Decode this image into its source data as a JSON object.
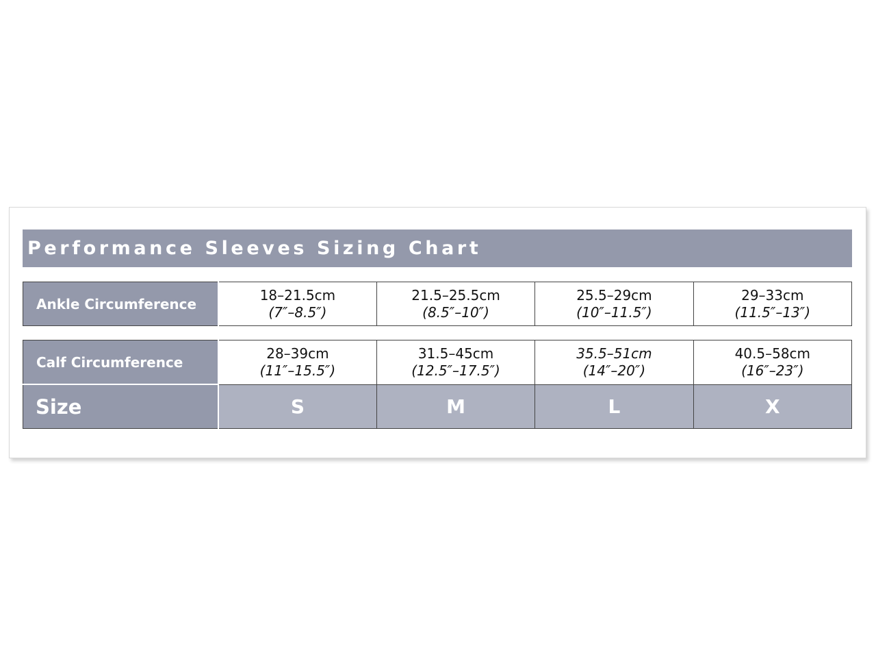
{
  "title": "Performance Sleeves Sizing Chart",
  "colors": {
    "header": "#9499ab",
    "size_row": "#aeb2c1"
  },
  "ankle": {
    "label": "Ankle Circumference",
    "cells": [
      {
        "cm": "18–21.5cm",
        "in": "(7″–8.5″)"
      },
      {
        "cm": "21.5–25.5cm",
        "in": "(8.5″–10″)"
      },
      {
        "cm": "25.5–29cm",
        "in": "(10″–11.5″)"
      },
      {
        "cm": "29–33cm",
        "in": "(11.5″–13″)"
      }
    ]
  },
  "calf": {
    "label": "Calf Circumference",
    "cells": [
      {
        "cm": "28–39cm",
        "in": "(11″–15.5″)"
      },
      {
        "cm": "31.5–45cm",
        "in": "(12.5″–17.5″)"
      },
      {
        "cm": "35.5–51cm",
        "in": "(14″–20″)"
      },
      {
        "cm": "40.5–58cm",
        "in": "(16″–23″)"
      }
    ]
  },
  "size": {
    "label": "Size",
    "values": [
      "S",
      "M",
      "L",
      "X"
    ]
  }
}
